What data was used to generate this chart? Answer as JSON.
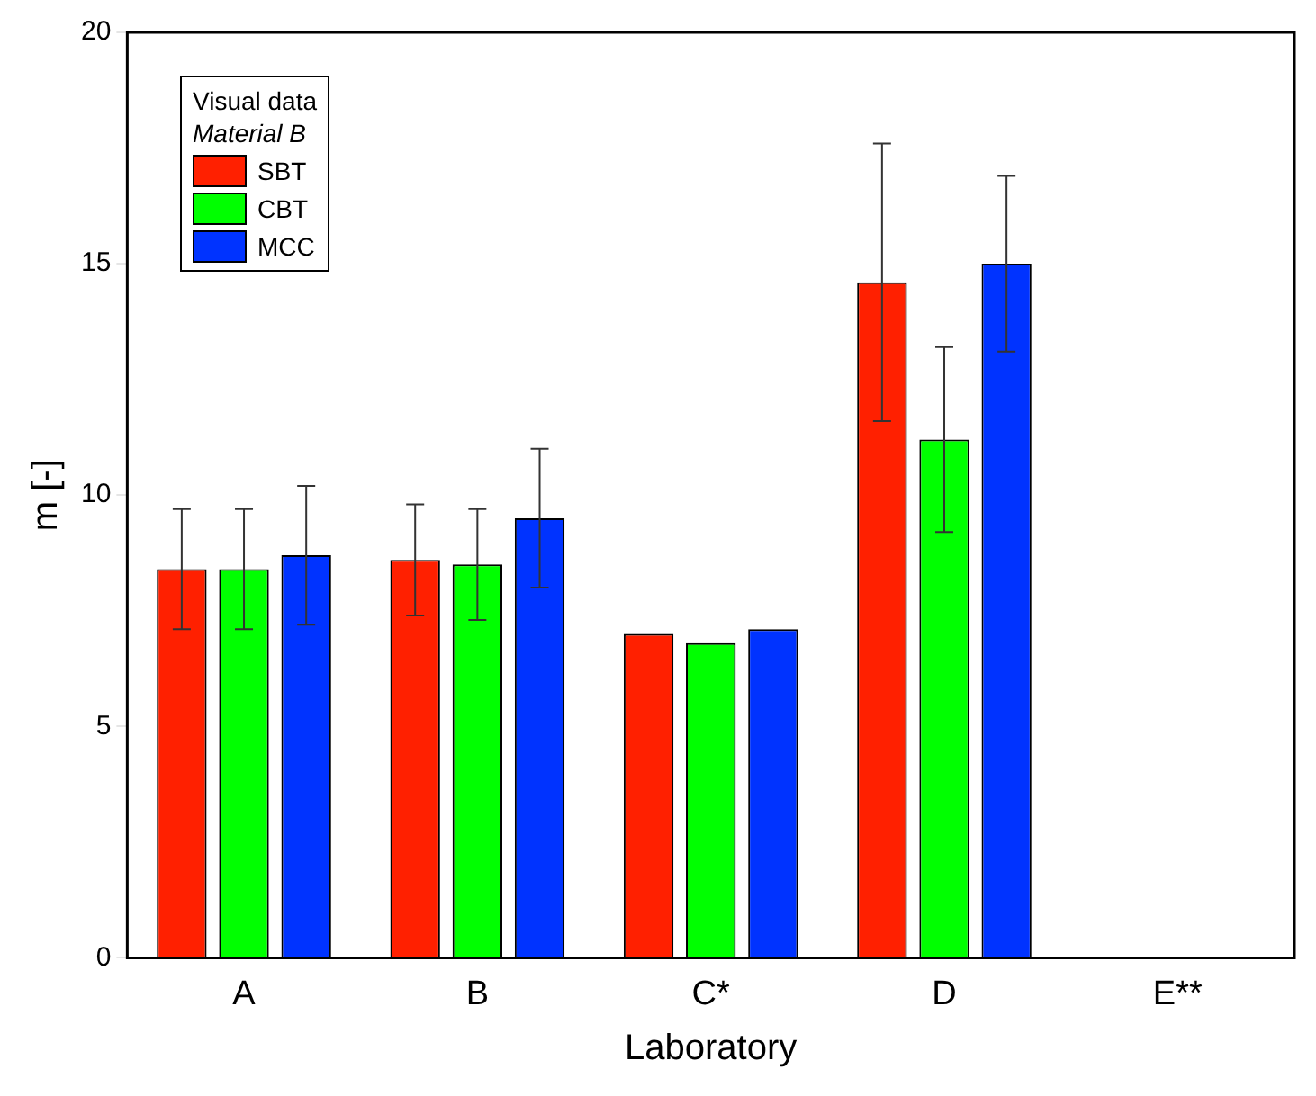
{
  "chart_data": {
    "type": "bar",
    "xlabel": "Laboratory",
    "ylabel": "m [-]",
    "legend_title": "Visual data",
    "annotations": [
      "Material B"
    ],
    "categories": [
      "A",
      "B",
      "C*",
      "D",
      "E**"
    ],
    "series": [
      {
        "name": "SBT",
        "color": "#ff2000",
        "values": [
          8.4,
          8.6,
          7.0,
          14.6,
          null
        ],
        "errors": [
          1.3,
          1.2,
          null,
          3.0,
          null
        ]
      },
      {
        "name": "CBT",
        "color": "#00ff00",
        "values": [
          8.4,
          8.5,
          6.8,
          11.2,
          null
        ],
        "errors": [
          1.3,
          1.2,
          null,
          2.0,
          null
        ]
      },
      {
        "name": "MCC",
        "color": "#0033ff",
        "values": [
          8.7,
          9.5,
          7.1,
          15.0,
          null
        ],
        "errors": [
          1.5,
          1.5,
          null,
          1.9,
          null
        ]
      }
    ],
    "ylim": [
      0,
      20
    ],
    "yticks": [
      0,
      5,
      10,
      15,
      20
    ],
    "grid": false,
    "legend": "top left"
  }
}
